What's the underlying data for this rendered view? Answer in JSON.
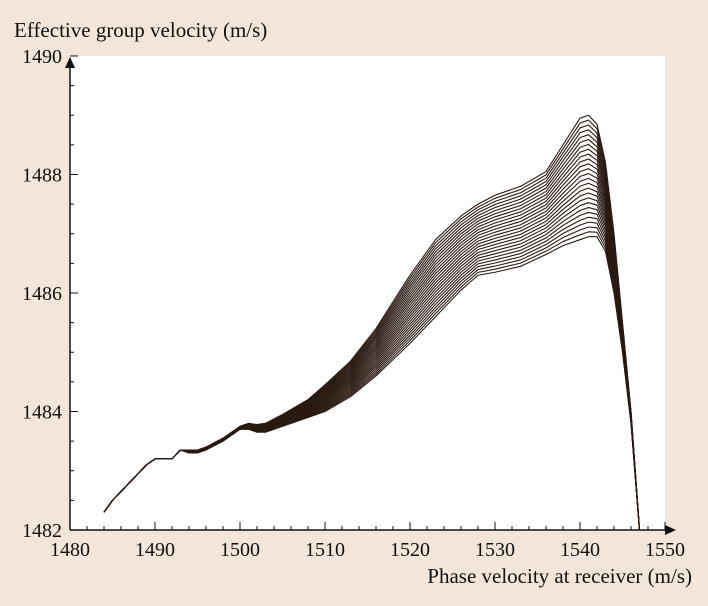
{
  "chart_data": {
    "type": "line",
    "title": "",
    "ylabel": "Effective group velocity (m/s)",
    "xlabel": "Phase velocity at receiver (m/s)",
    "xlim": [
      1480,
      1550
    ],
    "ylim": [
      1482,
      1490
    ],
    "x_ticks": [
      1480,
      1490,
      1500,
      1510,
      1520,
      1530,
      1540,
      1550
    ],
    "y_ticks": [
      1482,
      1484,
      1486,
      1488,
      1490
    ],
    "x_ticks_minor_step": 2,
    "y_ticks_minor_step": 0.5,
    "grid": false,
    "line_color": "#2a1a12",
    "band": {
      "curve_count": 26,
      "upper_envelope": {
        "x": [
          1484,
          1485,
          1487,
          1489,
          1490,
          1492,
          1493,
          1494,
          1495,
          1496,
          1498,
          1500,
          1501,
          1502,
          1503,
          1505,
          1508,
          1510,
          1513,
          1516,
          1520,
          1523,
          1526,
          1528,
          1530,
          1533,
          1536,
          1538,
          1540,
          1541,
          1542,
          1543,
          1544,
          1545,
          1546,
          1547
        ],
        "y": [
          1482.3,
          1482.5,
          1482.8,
          1483.1,
          1483.2,
          1483.2,
          1483.35,
          1483.35,
          1483.35,
          1483.4,
          1483.55,
          1483.75,
          1483.8,
          1483.78,
          1483.8,
          1483.95,
          1484.2,
          1484.45,
          1484.85,
          1485.4,
          1486.3,
          1486.9,
          1487.3,
          1487.5,
          1487.65,
          1487.8,
          1488.05,
          1488.5,
          1488.95,
          1489.0,
          1488.85,
          1488.2,
          1487.0,
          1485.5,
          1484.0,
          1482.0
        ]
      },
      "lower_envelope": {
        "x": [
          1484,
          1485,
          1487,
          1489,
          1490,
          1492,
          1493,
          1494,
          1495,
          1496,
          1498,
          1500,
          1501,
          1502,
          1503,
          1505,
          1508,
          1510,
          1513,
          1516,
          1520,
          1523,
          1526,
          1528,
          1530,
          1533,
          1536,
          1538,
          1540,
          1541,
          1542,
          1543,
          1544,
          1545,
          1546,
          1547
        ],
        "y": [
          1482.3,
          1482.5,
          1482.8,
          1483.1,
          1483.2,
          1483.2,
          1483.35,
          1483.3,
          1483.3,
          1483.35,
          1483.5,
          1483.7,
          1483.7,
          1483.65,
          1483.65,
          1483.75,
          1483.9,
          1484.0,
          1484.25,
          1484.6,
          1485.15,
          1485.6,
          1486.05,
          1486.3,
          1486.35,
          1486.45,
          1486.65,
          1486.8,
          1486.9,
          1486.95,
          1486.95,
          1486.7,
          1486.0,
          1485.0,
          1483.8,
          1482.0
        ]
      }
    }
  }
}
